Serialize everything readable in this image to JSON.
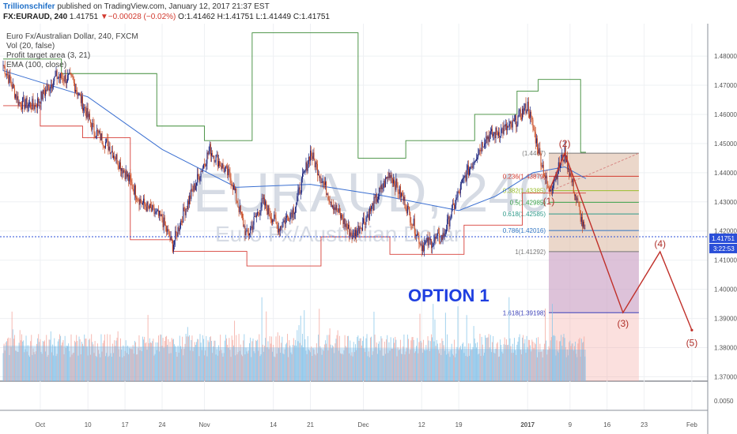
{
  "header": {
    "author": "Trillionschifer",
    "published": "published on TradingView.com, January 12, 2017 21:37 EST",
    "symbol": "FX:EURAUD, 240",
    "price": "1.41751",
    "change_arrow": "▼",
    "change": "−0.00028 (−0.02%)",
    "ohlc": "O:1.41462 H:1.41751 L:1.41449 C:1.41751"
  },
  "legend": {
    "title": "Euro Fx/Australian Dollar, 240, FXCM",
    "vol": "Vol (20, false)",
    "profit": "Profit target area (3, 21)",
    "ema": "EMA (100, close)"
  },
  "watermark": {
    "symbol": "EURAUD, 240",
    "name": "Euro Fx/Australian Dollar"
  },
  "colors": {
    "up": "#1a237e",
    "down": "#c94a22",
    "upper_band": "#3d8b37",
    "lower_band": "#d7403a",
    "ema": "#3a6fd1",
    "wave": "#c0302a",
    "vol_up": "#84c4e8",
    "vol_down": "#f3a39a",
    "option_text": "#1f3fe0"
  },
  "option_label": "OPTION 1",
  "price_axis": {
    "ticks": [
      "1.48000",
      "1.47000",
      "1.46000",
      "1.45000",
      "1.44000",
      "1.43000",
      "1.42000",
      "1.41000",
      "1.40000",
      "1.39000",
      "1.38000",
      "1.37000"
    ],
    "vol_tick": "0.0050",
    "last_price": "1.41751",
    "countdown": "3:22:53"
  },
  "time_axis": {
    "labels": [
      "Oct",
      "10",
      "17",
      "24",
      "Nov",
      "14",
      "21",
      "Dec",
      "12",
      "19",
      "2017",
      "9",
      "16",
      "23",
      "Feb"
    ]
  },
  "fibonacci": {
    "levels": [
      {
        "ratio": "",
        "price": 1.4467,
        "label": "(1.4467)"
      },
      {
        "ratio": "0.236",
        "price": 1.43879,
        "label": "0.236(1.43879)"
      },
      {
        "ratio": "0.382",
        "price": 1.43385,
        "label": "0.382(1.43385)"
      },
      {
        "ratio": "0.5",
        "price": 1.42985,
        "label": "0.5(1.42985)"
      },
      {
        "ratio": "0.618",
        "price": 1.42585,
        "label": "0.618(1.42585)"
      },
      {
        "ratio": "0.786",
        "price": 1.42016,
        "label": "0.786(1.42016)"
      },
      {
        "ratio": "1",
        "price": 1.41292,
        "label": "1(1.41292)"
      },
      {
        "ratio": "1.618",
        "price": 1.39198,
        "label": "1.618(1.39198)"
      }
    ]
  },
  "elliott_waves": {
    "labels": [
      "(1)",
      "(2)",
      "(3)",
      "(4)",
      "(5)"
    ],
    "points": [
      {
        "label": "(1)",
        "date": "2017-01-05",
        "price": 1.4335
      },
      {
        "label": "(2)",
        "date": "2017-01-08",
        "price": 1.4467
      },
      {
        "label": "(3)",
        "date": "2017-01-19",
        "price": 1.392
      },
      {
        "label": "(4)",
        "date": "2017-01-26",
        "price": 1.4129
      },
      {
        "label": "(5)",
        "date": "2017-02-01",
        "price": 1.386
      }
    ]
  },
  "chart_data": {
    "type": "candlestick",
    "title": "Euro Fx/Australian Dollar, 240, FXCM",
    "x_range": [
      "2016-09-24",
      "2017-02-04"
    ],
    "y_range": [
      1.3685,
      1.4895
    ],
    "grid": true,
    "close_path": [
      {
        "date": "2016-09-24",
        "close": 1.477
      },
      {
        "date": "2016-09-27",
        "close": 1.464
      },
      {
        "date": "2016-09-30",
        "close": 1.463
      },
      {
        "date": "2016-10-04",
        "close": 1.473
      },
      {
        "date": "2016-10-07",
        "close": 1.472
      },
      {
        "date": "2016-10-11",
        "close": 1.455
      },
      {
        "date": "2016-10-14",
        "close": 1.449
      },
      {
        "date": "2016-10-17",
        "close": 1.44
      },
      {
        "date": "2016-10-20",
        "close": 1.43
      },
      {
        "date": "2016-10-24",
        "close": 1.424
      },
      {
        "date": "2016-10-26",
        "close": 1.415
      },
      {
        "date": "2016-10-28",
        "close": 1.426
      },
      {
        "date": "2016-11-02",
        "close": 1.448
      },
      {
        "date": "2016-11-06",
        "close": 1.438
      },
      {
        "date": "2016-11-09",
        "close": 1.418
      },
      {
        "date": "2016-11-12",
        "close": 1.43
      },
      {
        "date": "2016-11-15",
        "close": 1.421
      },
      {
        "date": "2016-11-18",
        "close": 1.428
      },
      {
        "date": "2016-11-21",
        "close": 1.447
      },
      {
        "date": "2016-11-25",
        "close": 1.43
      },
      {
        "date": "2016-11-29",
        "close": 1.418
      },
      {
        "date": "2016-12-02",
        "close": 1.426
      },
      {
        "date": "2016-12-06",
        "close": 1.44
      },
      {
        "date": "2016-12-09",
        "close": 1.429
      },
      {
        "date": "2016-12-12",
        "close": 1.415
      },
      {
        "date": "2016-12-16",
        "close": 1.418
      },
      {
        "date": "2016-12-20",
        "close": 1.438
      },
      {
        "date": "2016-12-24",
        "close": 1.452
      },
      {
        "date": "2016-12-29",
        "close": 1.456
      },
      {
        "date": "2017-01-01",
        "close": 1.463
      },
      {
        "date": "2017-01-05",
        "close": 1.4335
      },
      {
        "date": "2017-01-08",
        "close": 1.4467
      },
      {
        "date": "2017-01-11",
        "close": 1.425
      },
      {
        "date": "2017-01-12",
        "close": 1.41751
      }
    ],
    "ema_100": [
      {
        "date": "2016-09-24",
        "value": 1.475
      },
      {
        "date": "2016-10-10",
        "value": 1.466
      },
      {
        "date": "2016-10-24",
        "value": 1.448
      },
      {
        "date": "2016-11-07",
        "value": 1.435
      },
      {
        "date": "2016-11-21",
        "value": 1.436
      },
      {
        "date": "2016-12-05",
        "value": 1.432
      },
      {
        "date": "2016-12-19",
        "value": 1.427
      },
      {
        "date": "2016-12-26",
        "value": 1.432
      },
      {
        "date": "2017-01-02",
        "value": 1.44
      },
      {
        "date": "2017-01-08",
        "value": 1.442
      },
      {
        "date": "2017-01-12",
        "value": 1.438
      }
    ],
    "profit_target_upper": [
      {
        "date": "2016-09-24",
        "value": 1.479
      },
      {
        "date": "2016-10-05",
        "value": 1.479
      },
      {
        "date": "2016-10-05",
        "value": 1.474
      },
      {
        "date": "2016-10-23",
        "value": 1.474
      },
      {
        "date": "2016-10-23",
        "value": 1.456
      },
      {
        "date": "2016-11-01",
        "value": 1.456
      },
      {
        "date": "2016-11-01",
        "value": 1.451
      },
      {
        "date": "2016-11-10",
        "value": 1.451
      },
      {
        "date": "2016-11-10",
        "value": 1.488
      },
      {
        "date": "2016-11-30",
        "value": 1.488
      },
      {
        "date": "2016-11-30",
        "value": 1.445
      },
      {
        "date": "2016-12-09",
        "value": 1.445
      },
      {
        "date": "2016-12-09",
        "value": 1.451
      },
      {
        "date": "2016-12-22",
        "value": 1.451
      },
      {
        "date": "2016-12-22",
        "value": 1.46
      },
      {
        "date": "2016-12-30",
        "value": 1.46
      },
      {
        "date": "2016-12-30",
        "value": 1.468
      },
      {
        "date": "2017-01-03",
        "value": 1.468
      },
      {
        "date": "2017-01-03",
        "value": 1.472
      },
      {
        "date": "2017-01-11",
        "value": 1.472
      },
      {
        "date": "2017-01-11",
        "value": 1.447
      },
      {
        "date": "2017-01-12",
        "value": 1.447
      }
    ],
    "profit_target_lower": [
      {
        "date": "2016-09-24",
        "value": 1.463
      },
      {
        "date": "2016-10-01",
        "value": 1.463
      },
      {
        "date": "2016-10-01",
        "value": 1.456
      },
      {
        "date": "2016-10-09",
        "value": 1.456
      },
      {
        "date": "2016-10-09",
        "value": 1.452
      },
      {
        "date": "2016-10-18",
        "value": 1.452
      },
      {
        "date": "2016-10-18",
        "value": 1.417
      },
      {
        "date": "2016-10-26",
        "value": 1.417
      },
      {
        "date": "2016-10-26",
        "value": 1.413
      },
      {
        "date": "2016-11-09",
        "value": 1.413
      },
      {
        "date": "2016-11-09",
        "value": 1.408
      },
      {
        "date": "2016-11-23",
        "value": 1.408
      },
      {
        "date": "2016-11-23",
        "value": 1.418
      },
      {
        "date": "2016-12-06",
        "value": 1.418
      },
      {
        "date": "2016-12-06",
        "value": 1.412
      },
      {
        "date": "2016-12-20",
        "value": 1.412
      },
      {
        "date": "2016-12-20",
        "value": 1.422
      },
      {
        "date": "2016-12-31",
        "value": 1.422
      },
      {
        "date": "2016-12-31",
        "value": 1.433
      },
      {
        "date": "2017-01-12",
        "value": 1.433
      }
    ],
    "profit_target_area": {
      "from_date": "2017-01-05",
      "to_date": "2017-01-22",
      "entry": 1.4467,
      "stop": 1.41292,
      "target": 1.39198,
      "floor": 1.3685
    },
    "volume": {
      "from_date": "2016-09-24",
      "to_date": "2017-01-12",
      "ylim": [
        0,
        0.01
      ]
    }
  }
}
